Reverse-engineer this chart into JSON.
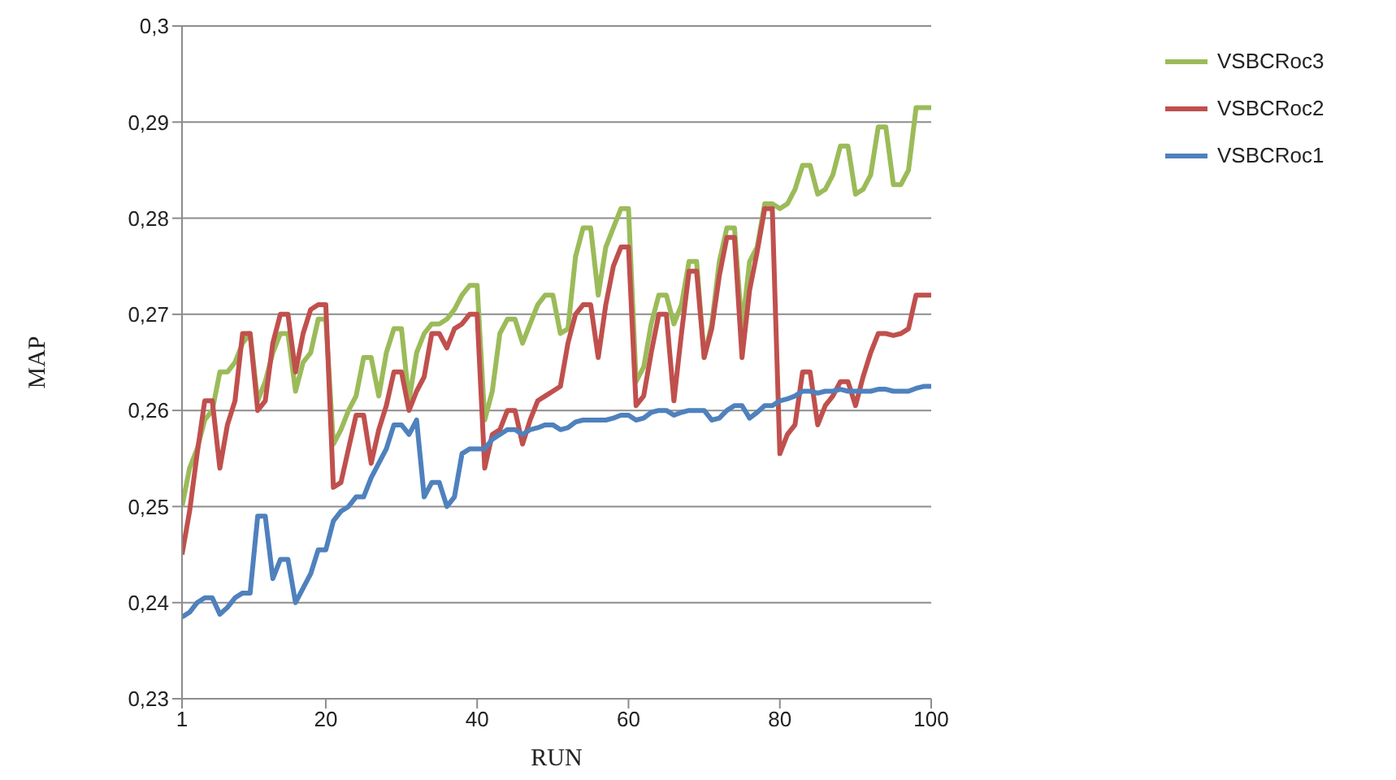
{
  "chart_data": {
    "type": "line",
    "xlabel": "RUN",
    "ylabel": "MAP",
    "x": [
      1,
      2,
      3,
      4,
      5,
      6,
      7,
      8,
      9,
      10,
      11,
      12,
      13,
      14,
      15,
      16,
      17,
      18,
      19,
      20,
      21,
      22,
      23,
      24,
      25,
      26,
      27,
      28,
      29,
      30,
      31,
      32,
      33,
      34,
      35,
      36,
      37,
      38,
      39,
      40,
      41,
      42,
      43,
      44,
      45,
      46,
      47,
      48,
      49,
      50,
      51,
      52,
      53,
      54,
      55,
      56,
      57,
      58,
      59,
      60,
      61,
      62,
      63,
      64,
      65,
      66,
      67,
      68,
      69,
      70,
      71,
      72,
      73,
      74,
      75,
      76,
      77,
      78,
      79,
      80,
      81,
      82,
      83,
      84,
      85,
      86,
      87,
      88,
      89,
      90,
      91,
      92,
      93,
      94,
      95,
      96,
      97,
      98,
      99,
      100
    ],
    "series": [
      {
        "name": "VSBCRoc3",
        "color": "#9bbb59",
        "values": [
          0.25,
          0.254,
          0.256,
          0.259,
          0.26,
          0.264,
          0.264,
          0.265,
          0.267,
          0.268,
          0.261,
          0.263,
          0.266,
          0.268,
          0.268,
          0.262,
          0.265,
          0.266,
          0.2695,
          0.2695,
          0.2565,
          0.258,
          0.26,
          0.2615,
          0.2655,
          0.2655,
          0.2615,
          0.266,
          0.2685,
          0.2685,
          0.261,
          0.266,
          0.268,
          0.269,
          0.269,
          0.2695,
          0.2705,
          0.272,
          0.273,
          0.273,
          0.259,
          0.262,
          0.268,
          0.2695,
          0.2695,
          0.267,
          0.269,
          0.271,
          0.272,
          0.272,
          0.268,
          0.2685,
          0.276,
          0.279,
          0.279,
          0.272,
          0.277,
          0.279,
          0.281,
          0.281,
          0.263,
          0.2645,
          0.269,
          0.272,
          0.272,
          0.269,
          0.271,
          0.2755,
          0.2755,
          0.2655,
          0.269,
          0.2755,
          0.279,
          0.279,
          0.2685,
          0.2755,
          0.277,
          0.2815,
          0.2815,
          0.281,
          0.2815,
          0.283,
          0.2855,
          0.2855,
          0.2825,
          0.283,
          0.2845,
          0.2875,
          0.2875,
          0.2825,
          0.283,
          0.2845,
          0.2895,
          0.2895,
          0.2835,
          0.2835,
          0.285,
          0.2915,
          0.2915,
          0.2915
        ]
      },
      {
        "name": "VSBCRoc2",
        "color": "#c0504d",
        "values": [
          0.245,
          0.2495,
          0.2555,
          0.261,
          0.261,
          0.254,
          0.2585,
          0.261,
          0.268,
          0.268,
          0.26,
          0.261,
          0.267,
          0.27,
          0.27,
          0.264,
          0.268,
          0.2705,
          0.271,
          0.271,
          0.252,
          0.2525,
          0.256,
          0.2595,
          0.2595,
          0.2545,
          0.258,
          0.2605,
          0.264,
          0.264,
          0.26,
          0.262,
          0.2635,
          0.268,
          0.268,
          0.2665,
          0.2685,
          0.269,
          0.27,
          0.27,
          0.254,
          0.2575,
          0.258,
          0.26,
          0.26,
          0.2565,
          0.259,
          0.261,
          0.2615,
          0.262,
          0.2625,
          0.267,
          0.27,
          0.271,
          0.271,
          0.2655,
          0.271,
          0.275,
          0.277,
          0.277,
          0.2605,
          0.2615,
          0.266,
          0.27,
          0.27,
          0.261,
          0.268,
          0.2745,
          0.2745,
          0.2655,
          0.2685,
          0.274,
          0.278,
          0.278,
          0.2655,
          0.2725,
          0.2765,
          0.281,
          0.281,
          0.2555,
          0.2575,
          0.2585,
          0.264,
          0.264,
          0.2585,
          0.2605,
          0.2615,
          0.263,
          0.263,
          0.2605,
          0.2635,
          0.266,
          0.268,
          0.268,
          0.2678,
          0.268,
          0.2685,
          0.272,
          0.272,
          0.272
        ]
      },
      {
        "name": "VSBCRoc1",
        "color": "#4f81bd",
        "values": [
          0.2385,
          0.239,
          0.24,
          0.2405,
          0.2405,
          0.2388,
          0.2395,
          0.2405,
          0.241,
          0.241,
          0.249,
          0.249,
          0.2425,
          0.2445,
          0.2445,
          0.24,
          0.2415,
          0.243,
          0.2455,
          0.2455,
          0.2485,
          0.2495,
          0.25,
          0.251,
          0.251,
          0.253,
          0.2545,
          0.256,
          0.2585,
          0.2585,
          0.2575,
          0.259,
          0.251,
          0.2525,
          0.2525,
          0.25,
          0.251,
          0.2555,
          0.256,
          0.256,
          0.256,
          0.257,
          0.2575,
          0.258,
          0.258,
          0.2575,
          0.258,
          0.2582,
          0.2585,
          0.2585,
          0.258,
          0.2582,
          0.2588,
          0.259,
          0.259,
          0.259,
          0.259,
          0.2592,
          0.2595,
          0.2595,
          0.259,
          0.2592,
          0.2598,
          0.26,
          0.26,
          0.2595,
          0.2598,
          0.26,
          0.26,
          0.26,
          0.259,
          0.2592,
          0.26,
          0.2605,
          0.2605,
          0.2592,
          0.2598,
          0.2605,
          0.2605,
          0.261,
          0.2612,
          0.2615,
          0.262,
          0.262,
          0.2618,
          0.262,
          0.262,
          0.2622,
          0.262,
          0.262,
          0.262,
          0.262,
          0.2622,
          0.2622,
          0.262,
          0.262,
          0.262,
          0.2623,
          0.2625,
          0.2625
        ]
      }
    ],
    "xlim": [
      1,
      100
    ],
    "xticks": [
      1,
      20,
      40,
      60,
      80,
      100
    ],
    "ylim": [
      0.23,
      0.3
    ],
    "yticks": [
      {
        "value": 0.23,
        "label": "0,23"
      },
      {
        "value": 0.24,
        "label": "0,24"
      },
      {
        "value": 0.25,
        "label": "0,25"
      },
      {
        "value": 0.26,
        "label": "0,26"
      },
      {
        "value": 0.27,
        "label": "0,27"
      },
      {
        "value": 0.28,
        "label": "0,28"
      },
      {
        "value": 0.29,
        "label": "0,29"
      },
      {
        "value": 0.3,
        "label": "0,3"
      }
    ],
    "grid": "y",
    "legend": "top right",
    "marker": "none",
    "line_style": "solid"
  }
}
